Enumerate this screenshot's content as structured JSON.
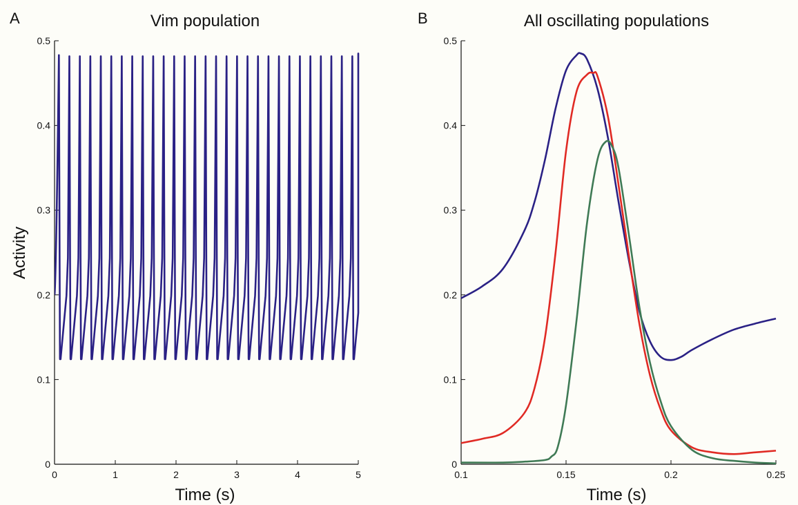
{
  "colors": {
    "blue": "#2a2185",
    "red": "#e02a24",
    "green": "#3f7a55",
    "axis": "#111111",
    "background": "#fdfdf8"
  },
  "chart_data": [
    {
      "type": "line",
      "panel_letter": "A",
      "title": "Vim population",
      "xlabel": "Time (s)",
      "ylabel": "Activity",
      "xlim": [
        0,
        5
      ],
      "ylim": [
        0,
        0.5
      ],
      "xticks": [
        0,
        1,
        2,
        3,
        4,
        5
      ],
      "yticks": [
        0,
        0.1,
        0.2,
        0.3,
        0.4,
        0.5
      ],
      "grid": false,
      "series": [
        {
          "color": "#2a2185",
          "oscillation": {
            "period_s": 0.1725,
            "first_peak_s": 0.072,
            "min": 0.124,
            "max": 0.485,
            "start_value": 0.2,
            "end_s": 5.0,
            "end_value": 0.405
          }
        }
      ]
    },
    {
      "type": "line",
      "panel_letter": "B",
      "title": "All oscillating populations",
      "xlabel": "Time (s)",
      "ylabel": "",
      "xlim": [
        0.1,
        0.25
      ],
      "ylim": [
        0,
        0.5
      ],
      "xticks": [
        0.1,
        0.15,
        0.2,
        0.25
      ],
      "yticks": [
        0,
        0.1,
        0.2,
        0.3,
        0.4,
        0.5
      ],
      "grid": false,
      "series": [
        {
          "color": "#2a2185",
          "x": [
            0.1,
            0.11,
            0.12,
            0.13,
            0.135,
            0.14,
            0.145,
            0.15,
            0.155,
            0.157,
            0.16,
            0.165,
            0.17,
            0.175,
            0.18,
            0.185,
            0.19,
            0.195,
            0.2,
            0.205,
            0.21,
            0.22,
            0.23,
            0.24,
            0.25
          ],
          "y": [
            0.196,
            0.21,
            0.231,
            0.275,
            0.31,
            0.36,
            0.42,
            0.465,
            0.483,
            0.485,
            0.478,
            0.443,
            0.385,
            0.31,
            0.24,
            0.18,
            0.145,
            0.127,
            0.123,
            0.127,
            0.135,
            0.148,
            0.159,
            0.166,
            0.172
          ]
        },
        {
          "color": "#e02a24",
          "x": [
            0.1,
            0.11,
            0.12,
            0.13,
            0.135,
            0.14,
            0.145,
            0.15,
            0.155,
            0.16,
            0.163,
            0.165,
            0.17,
            0.175,
            0.18,
            0.185,
            0.19,
            0.195,
            0.2,
            0.21,
            0.22,
            0.23,
            0.24,
            0.25
          ],
          "y": [
            0.025,
            0.03,
            0.037,
            0.06,
            0.09,
            0.15,
            0.25,
            0.37,
            0.44,
            0.46,
            0.462,
            0.458,
            0.41,
            0.33,
            0.245,
            0.165,
            0.105,
            0.065,
            0.04,
            0.02,
            0.014,
            0.012,
            0.014,
            0.016
          ]
        },
        {
          "color": "#3f7a55",
          "x": [
            0.1,
            0.12,
            0.13,
            0.14,
            0.143,
            0.146,
            0.15,
            0.155,
            0.16,
            0.165,
            0.169,
            0.172,
            0.175,
            0.18,
            0.185,
            0.19,
            0.195,
            0.2,
            0.21,
            0.22,
            0.23,
            0.24,
            0.25
          ],
          "y": [
            0.002,
            0.002,
            0.003,
            0.005,
            0.009,
            0.02,
            0.07,
            0.17,
            0.285,
            0.36,
            0.381,
            0.375,
            0.35,
            0.27,
            0.185,
            0.12,
            0.075,
            0.045,
            0.017,
            0.007,
            0.004,
            0.002,
            0.001
          ]
        }
      ]
    }
  ]
}
